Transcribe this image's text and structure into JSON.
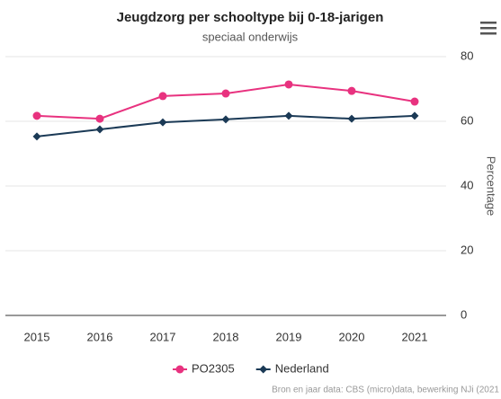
{
  "chart_data": {
    "type": "line",
    "title": "Jeugdzorg per schooltype bij 0-18-jarigen",
    "subtitle": "speciaal onderwijs",
    "y_axis_label": "Percentage",
    "categories": [
      "2015",
      "2016",
      "2017",
      "2018",
      "2019",
      "2020",
      "2021"
    ],
    "series": [
      {
        "name": "PO2305",
        "color": "#e8327f",
        "marker": "circle",
        "values": [
          61.7,
          60.8,
          67.8,
          68.6,
          71.4,
          69.4,
          66.1
        ]
      },
      {
        "name": "Nederland",
        "color": "#1b3a56",
        "marker": "diamond",
        "values": [
          55.3,
          57.5,
          59.7,
          60.6,
          61.7,
          60.8,
          61.7
        ]
      }
    ],
    "ylim": [
      0,
      80
    ],
    "yticks": [
      0,
      20,
      40,
      60,
      80
    ],
    "grid": true,
    "legend": "bottom",
    "credits": "Bron en jaar data: CBS (micro)data, bewerking NJi (2021"
  }
}
